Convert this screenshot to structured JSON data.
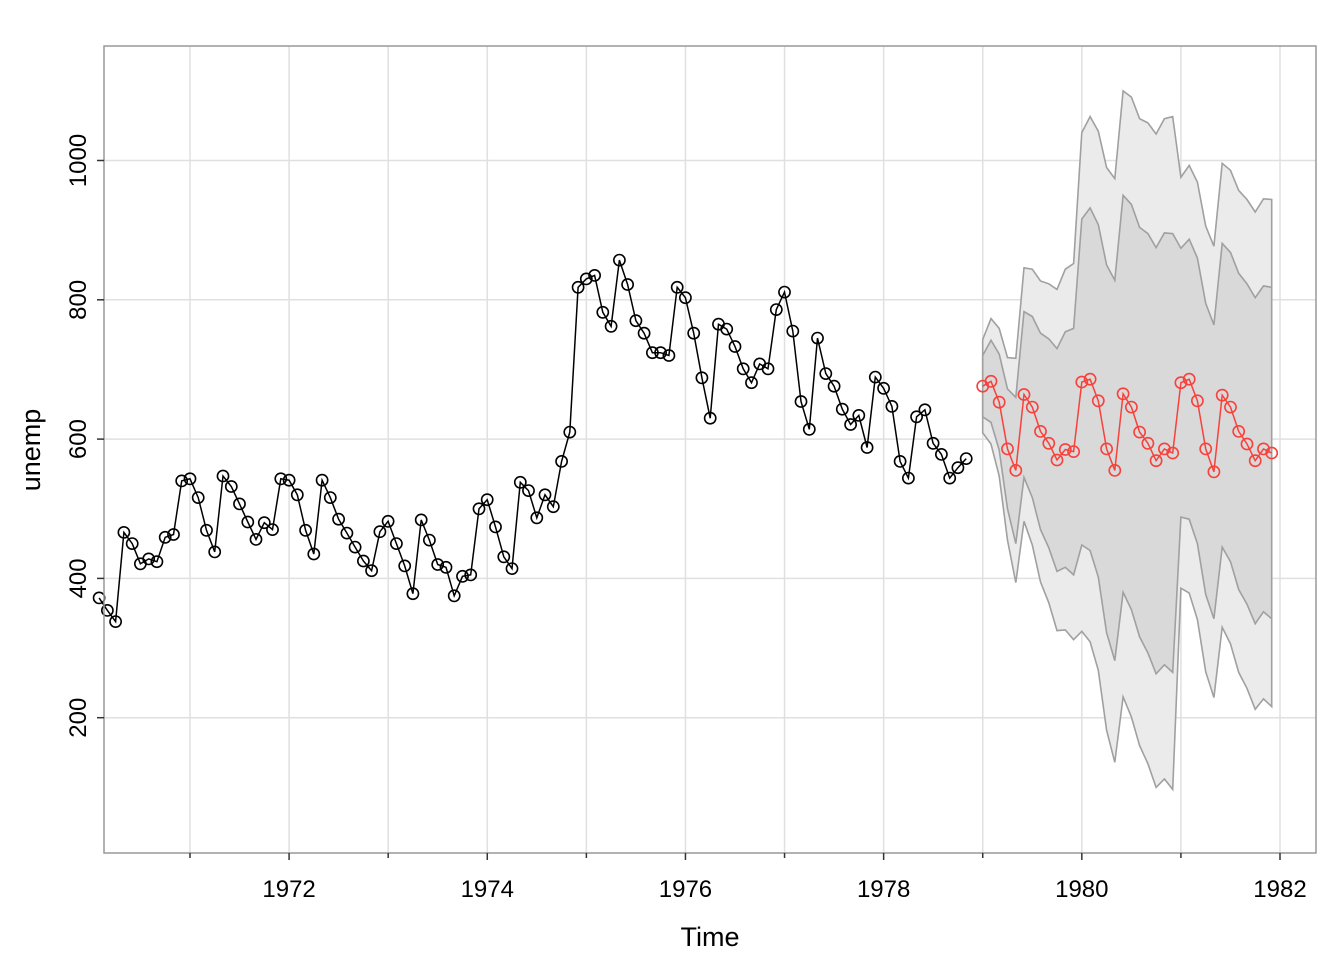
{
  "chart_data": {
    "type": "line",
    "title": "",
    "xlabel": "Time",
    "ylabel": "unemp",
    "xlim": [
      1970.083,
      1982.0
    ],
    "ylim": [
      44,
      1126
    ],
    "x_ticks": [
      1972,
      1974,
      1976,
      1978,
      1980,
      1982
    ],
    "x_tick_labels": [
      "1972",
      "1974",
      "1976",
      "1978",
      "1980",
      "1982"
    ],
    "x_minor_ticks": [
      1971,
      1973,
      1975,
      1977,
      1979,
      1981
    ],
    "y_ticks": [
      200,
      400,
      600,
      800,
      1000
    ],
    "y_tick_labels": [
      "200",
      "400",
      "600",
      "800",
      "1000"
    ],
    "grid": true,
    "colors": {
      "observed": "#000000",
      "forecast": "#f8413b",
      "band80": "#d9d9d9",
      "band95": "#ebebeb",
      "band_edge": "#a0a0a0",
      "grid": "#e0e0e0",
      "frame": "#999999"
    },
    "series": [
      {
        "role": "observed",
        "start": 1970.083,
        "frequency": 12,
        "values": [
          372,
          354,
          338,
          466,
          450,
          421,
          428,
          424,
          459,
          463,
          540,
          543,
          516,
          469,
          438,
          547,
          532,
          507,
          481,
          456,
          480,
          470,
          543,
          541,
          520,
          469,
          435,
          541,
          516,
          485,
          465,
          445,
          425,
          411,
          467,
          482,
          450,
          418,
          378,
          484,
          455,
          420,
          416,
          375,
          403,
          405,
          500,
          513,
          474,
          431,
          414,
          538,
          526,
          487,
          520,
          503,
          568,
          610,
          818,
          830,
          835,
          782,
          762,
          857,
          822,
          770,
          752,
          724,
          724,
          720,
          818,
          803,
          752,
          688,
          630,
          765,
          758,
          733,
          701,
          681,
          708,
          701,
          786,
          811,
          755,
          654,
          614,
          745,
          694,
          676,
          643,
          621,
          634,
          588,
          689,
          673,
          647,
          568,
          544,
          632,
          642,
          594,
          578,
          544,
          559,
          572
        ]
      },
      {
        "role": "forecast",
        "start": 1979.0,
        "frequency": 12,
        "values": [
          676,
          683,
          653,
          586,
          555,
          664,
          646,
          611,
          594,
          570,
          585,
          582,
          682,
          686,
          655,
          586,
          555,
          665,
          646,
          610,
          594,
          569,
          586,
          580,
          681,
          686,
          655,
          586,
          553,
          663,
          646,
          611,
          593,
          569,
          586,
          580
        ]
      }
    ],
    "intervals": {
      "start": 1979.0,
      "frequency": 12,
      "lower80": [
        632,
        624,
        584,
        500,
        450,
        545,
        516,
        470,
        444,
        410,
        416,
        405,
        448,
        440,
        402,
        322,
        282,
        380,
        355,
        316,
        293,
        263,
        276,
        265,
        488,
        485,
        450,
        377,
        342,
        445,
        424,
        384,
        363,
        335,
        352,
        342
      ],
      "upper80": [
        720,
        742,
        722,
        672,
        660,
        783,
        776,
        752,
        744,
        730,
        754,
        759,
        916,
        932,
        908,
        850,
        828,
        950,
        937,
        904,
        895,
        875,
        896,
        895,
        874,
        887,
        860,
        795,
        764,
        881,
        868,
        838,
        823,
        803,
        820,
        818
      ],
      "lower95": [
        609,
        593,
        547,
        455,
        394,
        482,
        448,
        395,
        365,
        325,
        326,
        312,
        324,
        309,
        268,
        182,
        136,
        230,
        201,
        160,
        134,
        100,
        112,
        97,
        386,
        379,
        341,
        266,
        229,
        330,
        306,
        265,
        242,
        212,
        227,
        216
      ],
      "upper95": [
        743,
        773,
        759,
        717,
        716,
        846,
        844,
        827,
        823,
        815,
        844,
        852,
        1040,
        1063,
        1042,
        990,
        974,
        1100,
        1091,
        1060,
        1054,
        1038,
        1060,
        1063,
        976,
        993,
        969,
        906,
        877,
        996,
        986,
        957,
        944,
        926,
        945,
        944
      ]
    }
  }
}
